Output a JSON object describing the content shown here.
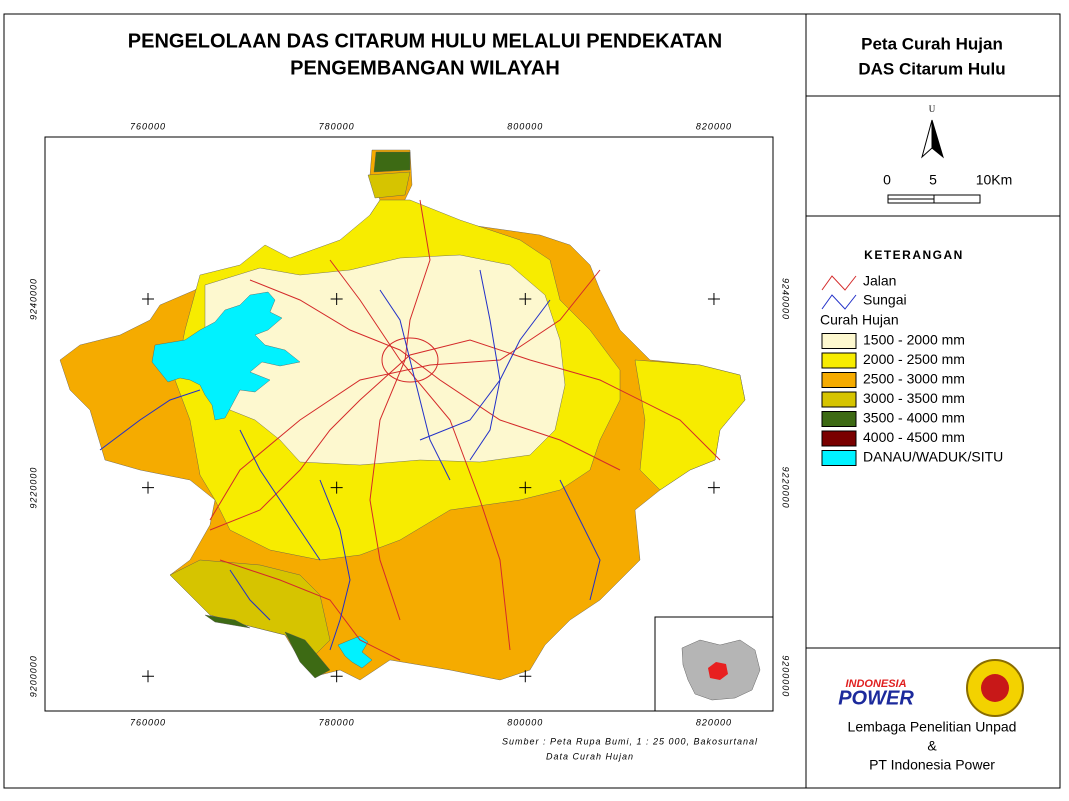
{
  "title": [
    "PENGELOLAAN DAS CITARUM HULU MELALUI PENDEKATAN",
    "PENGEMBANGAN WILAYAH"
  ],
  "map": {
    "xlim": [
      749080,
      826260
    ],
    "ylim": [
      9196310,
      9257180
    ],
    "xticks": [
      760000,
      780000,
      800000,
      820000
    ],
    "yticks": [
      9200000,
      9220000,
      9240000
    ]
  },
  "source": [
    "Sumber : Peta Rupa Bumi, 1 : 25 000, Bakosurtanal",
    "Data Curah Hujan"
  ],
  "panel": {
    "title": [
      "Peta Curah Hujan",
      "DAS Citarum Hulu"
    ],
    "north": "U",
    "scale": [
      "0",
      "5",
      "10Km"
    ],
    "legend_title": "KETERANGAN",
    "lines": [
      {
        "label": "Jalan",
        "color": "#d42a2a"
      },
      {
        "label": "Sungai",
        "color": "#2230c8"
      }
    ],
    "fill_title": "Curah Hujan",
    "fills": [
      {
        "label": "1500 - 2000 mm",
        "color": "#fdf8cf"
      },
      {
        "label": "2000 - 2500 mm",
        "color": "#f7ec00"
      },
      {
        "label": "2500 - 3000 mm",
        "color": "#f5ab00"
      },
      {
        "label": "3000 - 3500 mm",
        "color": "#d6c400"
      },
      {
        "label": "3500 - 4000 mm",
        "color": "#3d6a14"
      },
      {
        "label": "4000 - 4500 mm",
        "color": "#7a0000"
      },
      {
        "label": "DANAU/WADUK/SITU",
        "color": "#00f2ff"
      }
    ]
  },
  "logo": [
    "INDONESIA",
    "POWER"
  ],
  "credits": [
    "Lembaga Penelitian Unpad",
    "&",
    "PT Indonesia Power"
  ]
}
